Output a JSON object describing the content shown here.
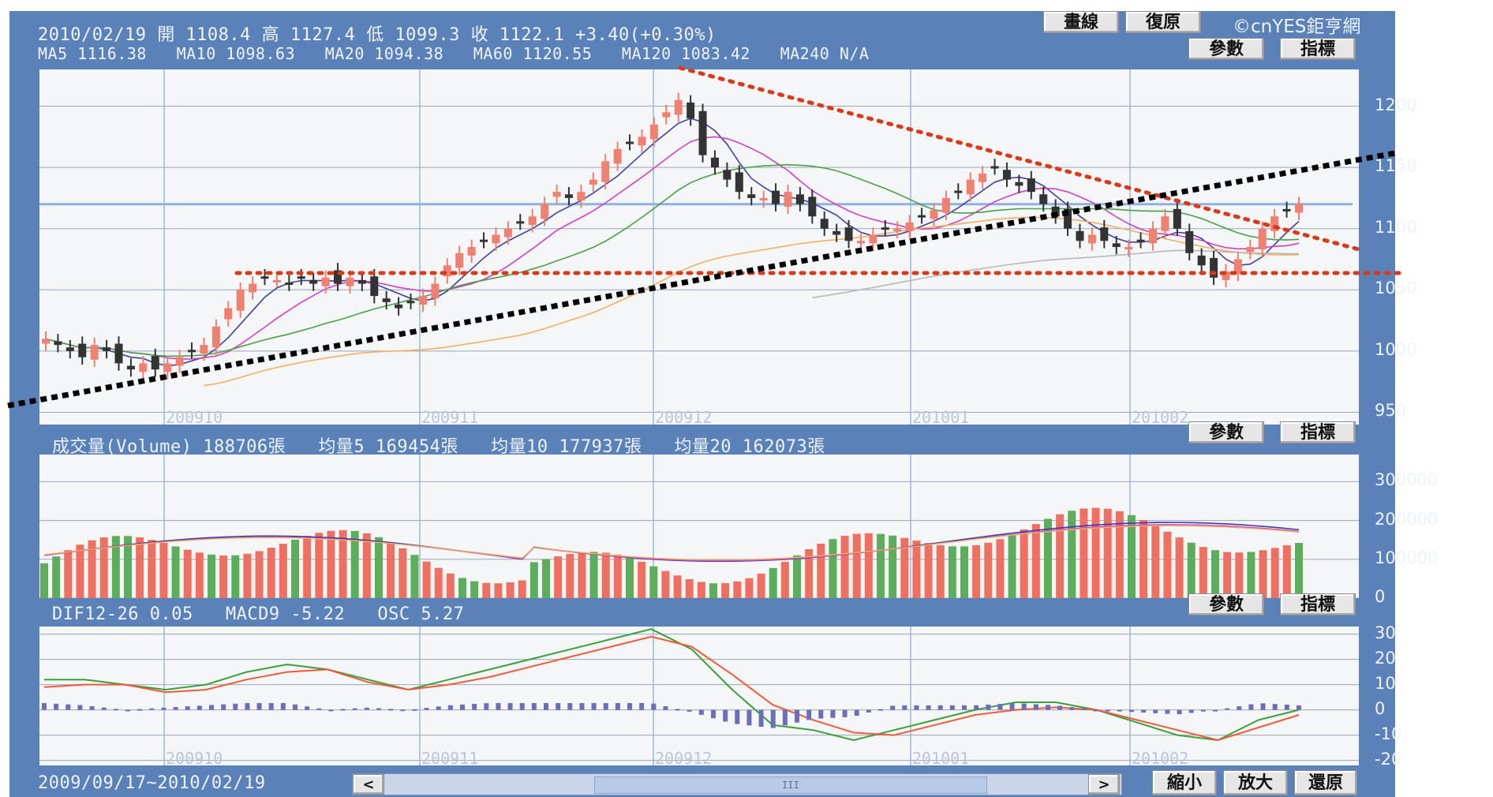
{
  "header": {
    "quote": "2010/02/19 開 1108.4 高 1127.4 低 1099.3 收 1122.1 +3.40(+0.30%)",
    "ma_line": "MA5 1116.38   MA10 1098.63   MA20 1094.38   MA60 1120.55   MA120 1083.42   MA240 N/A",
    "brand": "©cnYES鉅亨網",
    "draw_button": "畫線",
    "reset_button": "復原",
    "params_button": "參數",
    "indicator_button": "指標"
  },
  "volume_header": "成交量(Volume) 188706張   均量5 169454張   均量10 177937張   均量20 162073張",
  "macd_header": "DIF12-26 0.05   MACD9 -5.22   OSC 5.27",
  "footer": {
    "date_range": "2009/09/17~2010/02/19",
    "scroll_left": "<",
    "scroll_right": ">",
    "scroll_thumb": "III",
    "zoom_out": "縮小",
    "zoom_in": "放大",
    "restore": "還原"
  },
  "colors": {
    "frame": "#5b82b8",
    "up": "#f08070",
    "down": "#333333",
    "vol_up": "#ef6f60",
    "vol_down": "#5cae5c",
    "trend_red": "#d83a1a",
    "trend_black": "#000000"
  },
  "chart_data": [
    {
      "type": "candlestick",
      "title": "",
      "months": [
        "200910",
        "200911",
        "200912",
        "201001",
        "201002"
      ],
      "y_ticks": [
        950,
        1000,
        1050,
        1100,
        1150,
        1200
      ],
      "ylim": [
        940,
        1230
      ],
      "close_approx": [
        1010,
        1005,
        1000,
        995,
        1005,
        1000,
        990,
        985,
        990,
        985,
        990,
        995,
        1000,
        1005,
        1020,
        1035,
        1050,
        1055,
        1060,
        1058,
        1055,
        1060,
        1055,
        1060,
        1055,
        1060,
        1055,
        1045,
        1040,
        1035,
        1040,
        1045,
        1055,
        1070,
        1080,
        1085,
        1090,
        1095,
        1100,
        1105,
        1110,
        1120,
        1130,
        1125,
        1130,
        1140,
        1155,
        1165,
        1170,
        1175,
        1185,
        1195,
        1205,
        1190,
        1160,
        1150,
        1140,
        1130,
        1125,
        1125,
        1120,
        1130,
        1120,
        1110,
        1100,
        1095,
        1090,
        1090,
        1095,
        1100,
        1100,
        1105,
        1110,
        1115,
        1125,
        1130,
        1140,
        1145,
        1150,
        1140,
        1135,
        1130,
        1120,
        1110,
        1100,
        1090,
        1095,
        1090,
        1085,
        1085,
        1090,
        1100,
        1110,
        1100,
        1080,
        1070,
        1060,
        1065,
        1075,
        1085,
        1100,
        1110,
        1115,
        1120
      ],
      "hline": 1120
    },
    {
      "type": "bar",
      "title": "",
      "y_ticks": [
        0,
        100000,
        200000,
        300000
      ],
      "ylim": [
        0,
        370000
      ]
    },
    {
      "type": "line",
      "title": "",
      "y_ticks": [
        -20,
        -10,
        0,
        10,
        20,
        30
      ],
      "ylim": [
        -22,
        33
      ],
      "dif_approx": [
        12,
        12,
        10,
        8,
        10,
        15,
        18,
        16,
        12,
        8,
        12,
        16,
        20,
        24,
        28,
        32,
        24,
        8,
        -6,
        -8,
        -12,
        -8,
        -4,
        0,
        3,
        3,
        0,
        -5,
        -10,
        -12,
        -4,
        0
      ],
      "macd_approx": [
        9,
        10,
        10,
        7,
        8,
        12,
        15,
        16,
        11,
        8,
        10,
        13,
        17,
        21,
        25,
        29,
        25,
        14,
        2,
        -4,
        -9,
        -10,
        -6,
        -2,
        0,
        1,
        0,
        -4,
        -8,
        -12,
        -7,
        -2
      ]
    }
  ]
}
